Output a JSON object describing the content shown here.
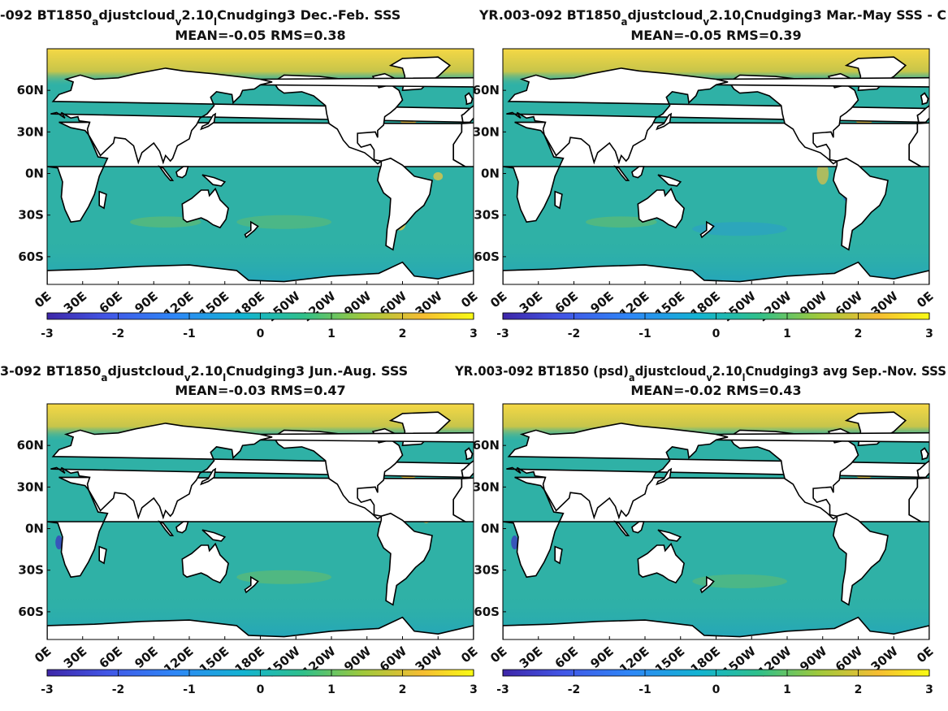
{
  "chart_data": [
    {
      "type": "heatmap",
      "title_prefix": "-092 BT1850",
      "title_sub1": "a",
      "title_mid": "djustcloud",
      "title_sub2": "v",
      "title_mid2": "2.10",
      "title_sub3": "l",
      "title_rest": "Cnudging3  Dec.-Feb. SSS",
      "stats": "MEAN=-0.05   RMS=0.38",
      "xticks": [
        "0E",
        "30E",
        "60E",
        "90E",
        "120E",
        "150E",
        "180E",
        "150W",
        "120W",
        "90W",
        "60W",
        "30W",
        "0E"
      ],
      "yticks": [
        "60N",
        "30N",
        "0N",
        "30S",
        "60S"
      ],
      "ytick_values": [
        60,
        30,
        0,
        -30,
        -60
      ],
      "xlim": [
        0,
        360
      ],
      "ylim": [
        -80,
        90
      ],
      "colorbar_ticks": [
        "-3",
        "-2",
        "-1",
        "0",
        "1",
        "2",
        "3"
      ],
      "clim": [
        -3,
        3
      ],
      "colormap": "parula",
      "mean": -0.05,
      "rms": 0.38
    },
    {
      "type": "heatmap",
      "title_prefix": "YR.003-092 BT1850",
      "title_sub1": "a",
      "title_mid": "djustcloud",
      "title_sub2": "v",
      "title_mid2": "2.10",
      "title_sub3": "l",
      "title_rest": "Cnudging3 Mar.-May SSS - C",
      "stats": "MEAN=-0.05   RMS=0.39",
      "xticks": [
        "0E",
        "30E",
        "60E",
        "90E",
        "120E",
        "150E",
        "180E",
        "150W",
        "120W",
        "90W",
        "60W",
        "30W",
        "0E"
      ],
      "yticks": [
        "60N",
        "30N",
        "0N",
        "30S",
        "60S"
      ],
      "ytick_values": [
        60,
        30,
        0,
        -30,
        -60
      ],
      "xlim": [
        0,
        360
      ],
      "ylim": [
        -80,
        90
      ],
      "colorbar_ticks": [
        "-3",
        "-2",
        "-1",
        "0",
        "1",
        "2",
        "3"
      ],
      "clim": [
        -3,
        3
      ],
      "colormap": "parula",
      "mean": -0.05,
      "rms": 0.39
    },
    {
      "type": "heatmap",
      "title_prefix": "3-092 BT1850",
      "title_sub1": "a",
      "title_mid": "djustcloud",
      "title_sub2": "v",
      "title_mid2": "2.10",
      "title_sub3": "l",
      "title_rest": "Cnudging3 Jun.-Aug. SSS",
      "stats": "MEAN=-0.03   RMS=0.47",
      "xticks": [
        "0E",
        "30E",
        "60E",
        "90E",
        "120E",
        "150E",
        "180E",
        "150W",
        "120W",
        "90W",
        "60W",
        "30W",
        "0E"
      ],
      "yticks": [
        "60N",
        "30N",
        "0N",
        "30S",
        "60S"
      ],
      "ytick_values": [
        60,
        30,
        0,
        -30,
        -60
      ],
      "xlim": [
        0,
        360
      ],
      "ylim": [
        -80,
        90
      ],
      "colorbar_ticks": [
        "-3",
        "-2",
        "-1",
        "0",
        "1",
        "2",
        "3"
      ],
      "clim": [
        -3,
        3
      ],
      "colormap": "parula",
      "mean": -0.03,
      "rms": 0.47
    },
    {
      "type": "heatmap",
      "title_prefix": "YR.003-092 BT1850 (psd)",
      "title_sub1": "a",
      "title_mid": "djustcloud",
      "title_sub2": "v",
      "title_mid2": "2.10",
      "title_sub3": "l",
      "title_rest": "Cnudging3 avg Sep.-Nov. SSS",
      "stats": "MEAN=-0.02   RMS=0.43",
      "xticks": [
        "0E",
        "30E",
        "60E",
        "90E",
        "120E",
        "150E",
        "180E",
        "150W",
        "120W",
        "90W",
        "60W",
        "30W",
        "0E"
      ],
      "yticks": [
        "60N",
        "30N",
        "0N",
        "30S",
        "60S"
      ],
      "ytick_values": [
        60,
        30,
        0,
        -30,
        -60
      ],
      "xlim": [
        0,
        360
      ],
      "ylim": [
        -80,
        90
      ],
      "colorbar_ticks": [
        "-3",
        "-2",
        "-1",
        "0",
        "1",
        "2",
        "3"
      ],
      "clim": [
        -3,
        3
      ],
      "colormap": "parula",
      "mean": -0.02,
      "rms": 0.43
    }
  ],
  "colors": {
    "ocean_base": "#2fb1a6",
    "arctic_high": "#f7d24a",
    "land": "#ffffff",
    "colormap_stops": [
      "#3e26a8",
      "#4256e6",
      "#2e87f7",
      "#13b4d2",
      "#2fc08b",
      "#9fc93c",
      "#f6bd32",
      "#f9fb14"
    ]
  }
}
